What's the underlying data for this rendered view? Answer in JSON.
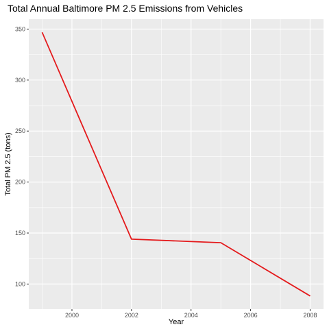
{
  "chart_data": {
    "type": "line",
    "title": "Total Annual Baltimore PM 2.5 Emissions from Vehicles",
    "xlabel": "Year",
    "ylabel": "Total PM 2.5 (tons)",
    "x": [
      1999,
      2002,
      2005,
      2008
    ],
    "series": [
      {
        "values": [
          346.8,
          144.0,
          140.5,
          88.3
        ]
      }
    ],
    "xlim": [
      1998.55,
      2008.45
    ],
    "ylim": [
      75.4,
      359.7
    ],
    "x_ticks": [
      2000,
      2002,
      2004,
      2006,
      2008
    ],
    "x_tick_labels": [
      "2000",
      "2002",
      "2004",
      "2006",
      "2008"
    ],
    "y_ticks": [
      100,
      150,
      200,
      250,
      300,
      350
    ],
    "y_tick_labels": [
      "100",
      "150",
      "200",
      "250",
      "300",
      "350"
    ],
    "grid": true,
    "legend": "none",
    "colors": {
      "line": "#e41a1c",
      "panel_background": "#ebebeb",
      "grid": "#ffffff",
      "tick_mark": "#333333"
    }
  }
}
